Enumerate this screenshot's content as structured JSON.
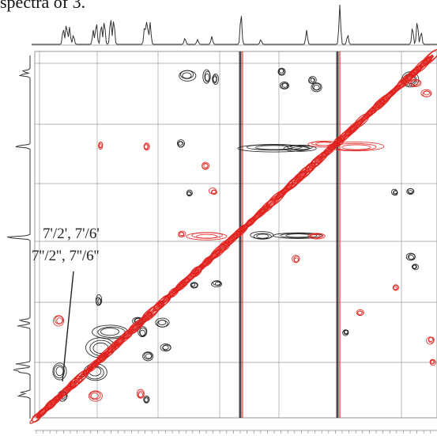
{
  "caption": "spectra of 3.",
  "chart_data": {
    "type": "heatmap",
    "title": "",
    "xlabel": "",
    "ylabel": "",
    "annotations": [
      "7'/2', 7'/6'",
      "7''/2'', 7''/6''"
    ],
    "colors": {
      "positive": "#e0201c",
      "negative": "#1a1a1a",
      "grid": "#9a9a9a"
    }
  }
}
